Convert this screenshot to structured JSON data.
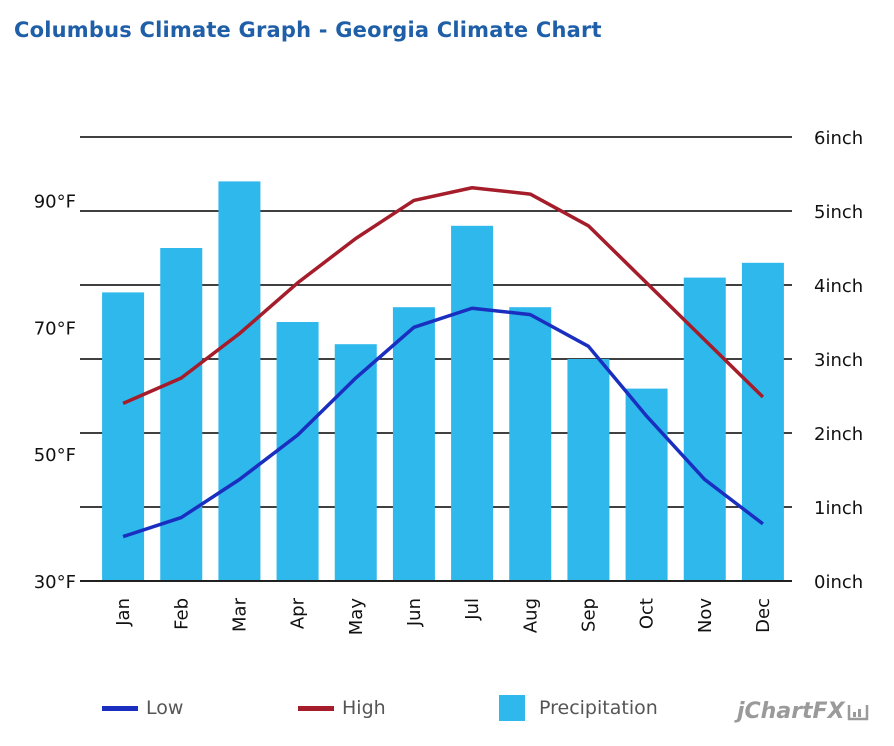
{
  "title": "Columbus Climate Graph - Georgia Climate Chart",
  "chart_data": {
    "type": "bar+line",
    "categories": [
      "Jan",
      "Feb",
      "Mar",
      "Apr",
      "May",
      "Jun",
      "Jul",
      "Aug",
      "Sep",
      "Oct",
      "Nov",
      "Dec"
    ],
    "series": [
      {
        "name": "Low",
        "type": "line",
        "axis": "left",
        "color": "#1a2fc0",
        "values": [
          37,
          40,
          46,
          53,
          62,
          70,
          73,
          72,
          67,
          56,
          46,
          39
        ]
      },
      {
        "name": "High",
        "type": "line",
        "axis": "left",
        "color": "#a51d2a",
        "values": [
          58,
          62,
          69,
          77,
          84,
          90,
          92,
          91,
          86,
          77,
          68,
          59
        ]
      },
      {
        "name": "Precipitation",
        "type": "bar",
        "axis": "right",
        "color": "#2fb8ec",
        "values": [
          3.9,
          4.5,
          5.4,
          3.5,
          3.2,
          3.7,
          4.8,
          3.7,
          3.0,
          2.6,
          4.1,
          4.3
        ]
      }
    ],
    "left_axis": {
      "ylim": [
        30,
        100
      ],
      "ticks": [
        30,
        50,
        70,
        90
      ],
      "tick_labels": [
        "30°F",
        "50°F",
        "70°F",
        "90°F"
      ]
    },
    "right_axis": {
      "ylim": [
        0,
        6
      ],
      "ticks": [
        0,
        1,
        2,
        3,
        4,
        5,
        6
      ],
      "tick_labels": [
        "0inch",
        "1inch",
        "2inch",
        "3inch",
        "4inch",
        "5inch",
        "6inch"
      ]
    },
    "grid": true,
    "legend": {
      "position": "bottom",
      "labels": [
        "Low",
        "High",
        "Precipitation"
      ]
    }
  },
  "brand": "jChartFX"
}
